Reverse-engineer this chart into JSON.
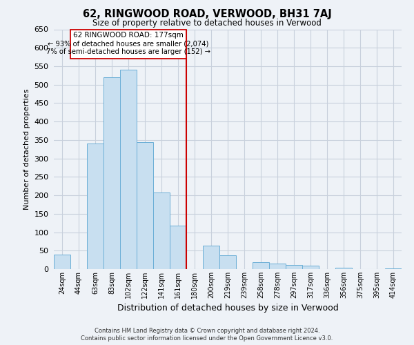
{
  "title": "62, RINGWOOD ROAD, VERWOOD, BH31 7AJ",
  "subtitle": "Size of property relative to detached houses in Verwood",
  "xlabel": "Distribution of detached houses by size in Verwood",
  "ylabel": "Number of detached properties",
  "bar_labels": [
    "24sqm",
    "44sqm",
    "63sqm",
    "83sqm",
    "102sqm",
    "122sqm",
    "141sqm",
    "161sqm",
    "180sqm",
    "200sqm",
    "219sqm",
    "239sqm",
    "258sqm",
    "278sqm",
    "297sqm",
    "317sqm",
    "336sqm",
    "356sqm",
    "375sqm",
    "395sqm",
    "414sqm"
  ],
  "bar_values": [
    40,
    0,
    340,
    520,
    540,
    345,
    207,
    118,
    0,
    63,
    38,
    0,
    19,
    15,
    12,
    10,
    0,
    4,
    0,
    0,
    2
  ],
  "bar_color": "#c8dff0",
  "bar_edge_color": "#6aaed6",
  "vline_x": 8,
  "vline_color": "#cc0000",
  "ylim": [
    0,
    650
  ],
  "yticks": [
    0,
    50,
    100,
    150,
    200,
    250,
    300,
    350,
    400,
    450,
    500,
    550,
    600,
    650
  ],
  "annotation_title": "62 RINGWOOD ROAD: 177sqm",
  "annotation_line1": "← 93% of detached houses are smaller (2,074)",
  "annotation_line2": "7% of semi-detached houses are larger (152) →",
  "footnote1": "Contains HM Land Registry data © Crown copyright and database right 2024.",
  "footnote2": "Contains public sector information licensed under the Open Government Licence v3.0.",
  "background_color": "#eef2f7",
  "plot_bg_color": "#eef2f7",
  "grid_color": "#c8d0dc"
}
